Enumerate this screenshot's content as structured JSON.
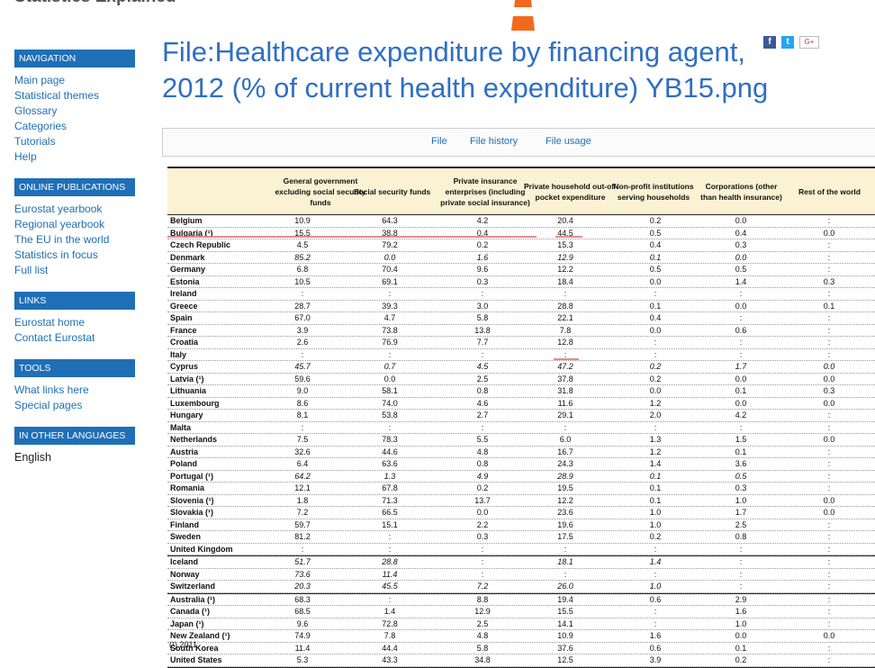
{
  "site_title": "Statistics Explained",
  "page_title": "File:Healthcare expenditure by financing agent, 2012 (% of current health expenditure) YB15.png",
  "social": {
    "facebook": "f",
    "twitter": "t",
    "google": "G+"
  },
  "sidebar": {
    "navigation": {
      "title": "NAVIGATION",
      "items": [
        "Main page",
        "Statistical themes",
        "Glossary",
        "Categories",
        "Tutorials",
        "Help"
      ]
    },
    "online_publications": {
      "title": "ONLINE PUBLICATIONS",
      "items": [
        "Eurostat yearbook",
        "Regional yearbook",
        "The EU in the world",
        "Statistics in focus",
        "Full list"
      ]
    },
    "links": {
      "title": "LINKS",
      "items": [
        "Eurostat home",
        "Contact Eurostat"
      ]
    },
    "tools": {
      "title": "TOOLS",
      "items": [
        "What links here",
        "Special pages"
      ]
    },
    "languages": {
      "title": "IN OTHER LANGUAGES",
      "items": [
        "English"
      ]
    }
  },
  "tabs": [
    "File",
    "File history",
    "File usage"
  ],
  "table": {
    "headers": [
      "General government excluding social security funds",
      "Social security funds",
      "Private insurance enterprises (including private social insurance)",
      "Private household out-of-pocket expenditure",
      "Non-profit institutions serving households",
      "Corporations (other than health insurance)",
      "Rest of the world"
    ],
    "rows": [
      {
        "c": "Belgium",
        "v": [
          "10.9",
          "64.3",
          "4.2",
          "20.4",
          "0.2",
          "0.0",
          ":"
        ]
      },
      {
        "c": "Bulgaria (¹)",
        "v": [
          "15.5",
          "38.8",
          "0.4",
          "44.5",
          "0.5",
          "0.4",
          "0.0"
        ]
      },
      {
        "c": "Czech Republic",
        "v": [
          "4.5",
          "79.2",
          "0.2",
          "15.3",
          "0.4",
          "0.3",
          ":"
        ]
      },
      {
        "c": "Denmark",
        "v": [
          "85.2",
          "0.0",
          "1.6",
          "12.9",
          "0.1",
          "0.0",
          ":"
        ],
        "it": [
          0,
          1,
          2,
          3,
          4,
          5
        ]
      },
      {
        "c": "Germany",
        "v": [
          "6.8",
          "70.4",
          "9.6",
          "12.2",
          "0.5",
          "0.5",
          ":"
        ]
      },
      {
        "c": "Estonia",
        "v": [
          "10.5",
          "69.1",
          "0.3",
          "18.4",
          "0.0",
          "1.4",
          "0.3"
        ]
      },
      {
        "c": "Ireland",
        "v": [
          ":",
          ":",
          ":",
          ":",
          ":",
          ":",
          ":"
        ]
      },
      {
        "c": "Greece",
        "v": [
          "28.7",
          "39.3",
          "3.0",
          "28.8",
          "0.1",
          "0.0",
          "0.1"
        ]
      },
      {
        "c": "Spain",
        "v": [
          "67.0",
          "4.7",
          "5.8",
          "22.1",
          "0.4",
          ":",
          ":"
        ]
      },
      {
        "c": "France",
        "v": [
          "3.9",
          "73.8",
          "13.8",
          "7.8",
          "0.0",
          "0.6",
          ":"
        ]
      },
      {
        "c": "Croatia",
        "v": [
          "2.6",
          "76.9",
          "7.7",
          "12.8",
          ":",
          ":",
          ":"
        ]
      },
      {
        "c": "Italy",
        "v": [
          ":",
          ":",
          ":",
          ":",
          ":",
          ":",
          ":"
        ]
      },
      {
        "c": "Cyprus",
        "v": [
          "45.7",
          "0.7",
          "4.5",
          "47.2",
          "0.2",
          "1.7",
          "0.0"
        ],
        "it": [
          0,
          1,
          2,
          3,
          4,
          5,
          6
        ]
      },
      {
        "c": "Latvia (¹)",
        "v": [
          "59.6",
          "0.0",
          "2.5",
          "37.8",
          "0.2",
          "0.0",
          "0.0"
        ]
      },
      {
        "c": "Lithuania",
        "v": [
          "9.0",
          "58.1",
          "0.8",
          "31.8",
          "0.0",
          "0.1",
          "0.3"
        ]
      },
      {
        "c": "Luxembourg",
        "v": [
          "8.6",
          "74.0",
          "4.6",
          "11.6",
          "1.2",
          "0.0",
          "0.0"
        ]
      },
      {
        "c": "Hungary",
        "v": [
          "8.1",
          "53.8",
          "2.7",
          "29.1",
          "2.0",
          "4.2",
          ":"
        ]
      },
      {
        "c": "Malta",
        "v": [
          ":",
          ":",
          ":",
          ":",
          ":",
          ":",
          ":"
        ]
      },
      {
        "c": "Netherlands",
        "v": [
          "7.5",
          "78.3",
          "5.5",
          "6.0",
          "1.3",
          "1.5",
          "0.0"
        ]
      },
      {
        "c": "Austria",
        "v": [
          "32.6",
          "44.6",
          "4.8",
          "16.7",
          "1.2",
          "0.1",
          ":"
        ]
      },
      {
        "c": "Poland",
        "v": [
          "6.4",
          "63.6",
          "0.8",
          "24.3",
          "1.4",
          "3.6",
          ":"
        ]
      },
      {
        "c": "Portugal (¹)",
        "v": [
          "64.2",
          "1.3",
          "4.9",
          "28.9",
          "0.1",
          "0.5",
          ":"
        ],
        "it": [
          0,
          1,
          2,
          3,
          4,
          5
        ]
      },
      {
        "c": "Romania",
        "v": [
          "12.1",
          "67.8",
          "0.2",
          "19.5",
          "0.1",
          "0.3",
          ":"
        ]
      },
      {
        "c": "Slovenia (¹)",
        "v": [
          "1.8",
          "71.3",
          "13.7",
          "12.2",
          "0.1",
          "1.0",
          "0.0"
        ]
      },
      {
        "c": "Slovakia (¹)",
        "v": [
          "7.2",
          "66.5",
          "0.0",
          "23.6",
          "1.0",
          "1.7",
          "0.0"
        ]
      },
      {
        "c": "Finland",
        "v": [
          "59.7",
          "15.1",
          "2.2",
          "19.6",
          "1.0",
          "2.5",
          ":"
        ]
      },
      {
        "c": "Sweden",
        "v": [
          "81.2",
          ":",
          "0.3",
          "17.5",
          "0.2",
          "0.8",
          ":"
        ]
      },
      {
        "c": "United Kingdom",
        "v": [
          ":",
          ":",
          ":",
          ":",
          ":",
          ":",
          ":"
        ]
      },
      {
        "c": "Iceland",
        "v": [
          "51.7",
          "28.8",
          ":",
          "18.1",
          "1.4",
          ":",
          ":"
        ],
        "it": [
          0,
          1,
          3,
          4
        ],
        "sep": true
      },
      {
        "c": "Norway",
        "v": [
          "73.6",
          "11.4",
          ":",
          ":",
          ":",
          ":",
          ":"
        ],
        "it": [
          0,
          1
        ]
      },
      {
        "c": "Switzerland",
        "v": [
          "20.3",
          "45.5",
          "7.2",
          "26.0",
          "1.0",
          ":",
          ":"
        ],
        "it": [
          0,
          1,
          2,
          3,
          4
        ]
      },
      {
        "c": "Australia (¹)",
        "v": [
          "68.3",
          ":",
          "8.8",
          "19.4",
          "0.6",
          "2.9",
          ":"
        ],
        "sep": true
      },
      {
        "c": "Canada (¹)",
        "v": [
          "68.5",
          "1.4",
          "12.9",
          "15.5",
          ":",
          "1.6",
          ":"
        ]
      },
      {
        "c": "Japan (¹)",
        "v": [
          "9.6",
          "72.8",
          "2.5",
          "14.1",
          ":",
          "1.0",
          ":"
        ]
      },
      {
        "c": "New Zealand (¹)",
        "v": [
          "74.9",
          "7.8",
          "4.8",
          "10.9",
          "1.6",
          "0.0",
          "0.0"
        ]
      },
      {
        "c": "South Korea",
        "v": [
          "11.4",
          "44.4",
          "5.8",
          "37.6",
          "0.6",
          "0.1",
          ":"
        ]
      },
      {
        "c": "United States",
        "v": [
          "5.3",
          "43.3",
          "34.8",
          "12.5",
          "3.9",
          "0.2",
          ":"
        ]
      }
    ],
    "footnote": "(¹) 2011."
  },
  "colors": {
    "accent": "#1f6fb7",
    "title": "#2f6fc3",
    "header_bg": "#fbf2d3",
    "highlight": "#e47575"
  }
}
